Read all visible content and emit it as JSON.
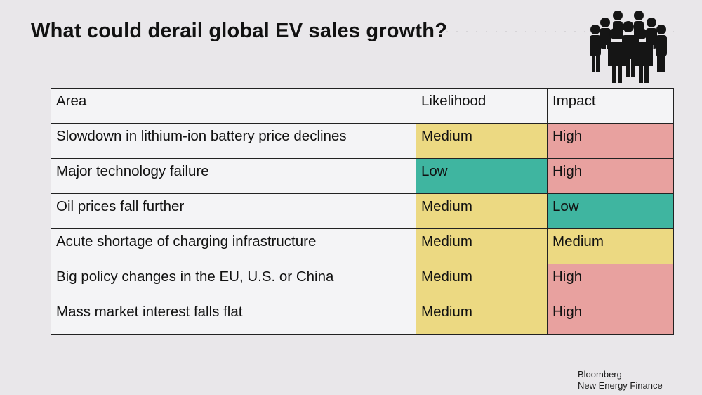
{
  "slide": {
    "title": "What could derail global EV sales growth?",
    "icon": "people-group-icon"
  },
  "table": {
    "headers": [
      "Area",
      "Likelihood",
      "Impact"
    ],
    "rows": [
      {
        "area": "Slowdown in lithium-ion battery price declines",
        "likelihood": "Medium",
        "impact": "High"
      },
      {
        "area": "Major technology failure",
        "likelihood": "Low",
        "impact": "High"
      },
      {
        "area": "Oil prices fall further",
        "likelihood": "Medium",
        "impact": "Low"
      },
      {
        "area": "Acute shortage of charging infrastructure",
        "likelihood": "Medium",
        "impact": "Medium"
      },
      {
        "area": "Big policy changes in the EU, U.S. or China",
        "likelihood": "Medium",
        "impact": "High"
      },
      {
        "area": "Mass market interest falls flat",
        "likelihood": "Medium",
        "impact": "High"
      }
    ]
  },
  "colors": {
    "Medium": "#ecd982",
    "High": "#e8a19f",
    "Low": "#3fb5a0"
  },
  "footer": {
    "line1": "Bloomberg",
    "line2": "New Energy Finance"
  }
}
